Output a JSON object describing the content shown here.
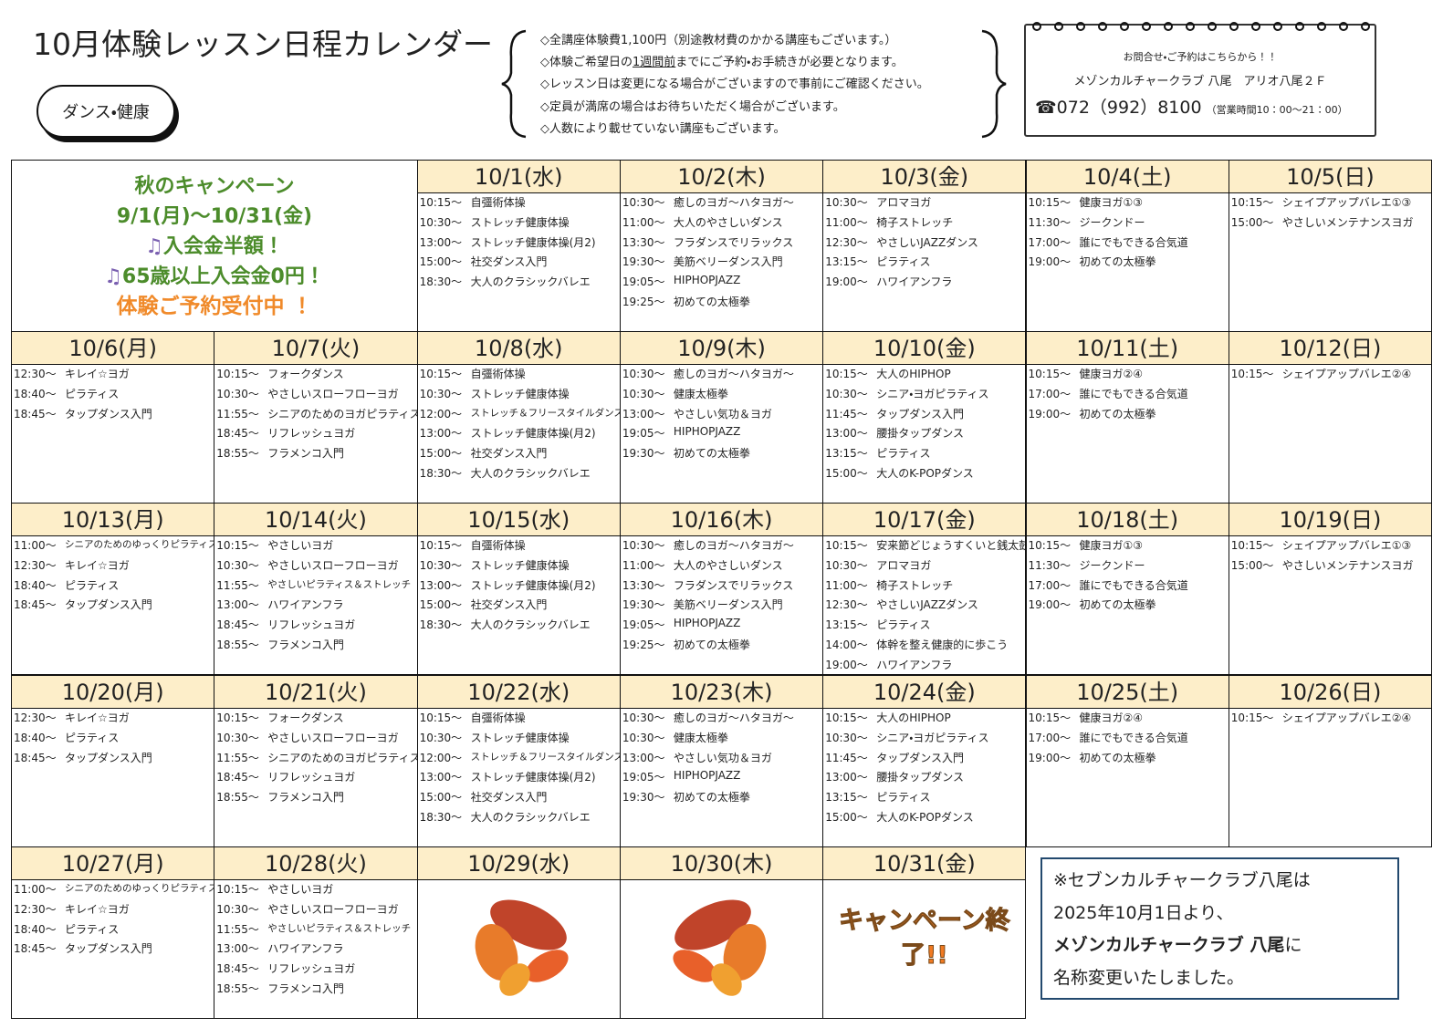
{
  "header": {
    "title": "10月体験レッスン日程カレンダー",
    "category": "ダンス・健康",
    "notes": [
      "◇全講座体験費1,100円（別途教材費のかかる講座もございます。）",
      {
        "before": "◇体験ご希望日の",
        "underline": "1週間前",
        "after": "までにご予約・お手続きが必要となります。"
      },
      "◇レッスン日は変更になる場合がございますので事前にご確認ください。",
      "◇定員が満席の場合はお待ちいただく場合がございます。",
      "◇人数により載せていない講座もございます。"
    ],
    "contact": {
      "lead": "お問合せ・ご予約はこちらから！！",
      "place": "メゾンカルチャークラブ 八尾　アリオ八尾２Ｆ",
      "phone": "☎072（992）8100",
      "hours": "（営業時間10：00～21：00）"
    }
  },
  "campaign": {
    "title": "秋のキャンペーン",
    "period": "9/1(月)～10/31(金)",
    "offer1": "入会金半額！",
    "offer2": "65歳以上入会金0円！",
    "cta": "体験ご予約受付中 ！"
  },
  "weeks": [
    [
      {
        "date": "10/1(水)",
        "lessons": [
          [
            "10:15～",
            "自彊術体操"
          ],
          [
            "10:30～",
            "ストレッチ健康体操"
          ],
          [
            "13:00～",
            "ストレッチ健康体操(月2)"
          ],
          [
            "15:00～",
            "社交ダンス入門"
          ],
          [
            "18:30～",
            "大人のクラシックバレエ"
          ]
        ]
      },
      {
        "date": "10/2(木)",
        "lessons": [
          [
            "10:30～",
            "癒しのヨガ～ハタヨガ～"
          ],
          [
            "11:00～",
            "大人のやさしいダンス"
          ],
          [
            "13:30～",
            "フラダンスでリラックス"
          ],
          [
            "19:30～",
            "美筋ベリーダンス入門"
          ],
          [
            "19:05～",
            "HIPHOPJAZZ"
          ],
          [
            "19:25～",
            "初めての太極拳"
          ]
        ]
      },
      {
        "date": "10/3(金)",
        "lessons": [
          [
            "10:30～",
            "アロマヨガ"
          ],
          [
            "11:00～",
            "椅子ストレッチ"
          ],
          [
            "12:30～",
            "やさしいJAZZダンス"
          ],
          [
            "13:15～",
            "ピラティス"
          ],
          [
            "19:00～",
            "ハワイアンフラ"
          ]
        ]
      },
      {
        "date": "10/4(土)",
        "lessons": [
          [
            "10:15～",
            "健康ヨガ①③"
          ],
          [
            "11:30～",
            "ジークンドー"
          ],
          [
            "17:00～",
            "誰にでもできる合気道"
          ],
          [
            "19:00～",
            "初めての太極拳"
          ]
        ]
      },
      {
        "date": "10/5(日)",
        "lessons": [
          [
            "10:15～",
            "シェイプアップバレエ①③"
          ],
          [
            "15:00～",
            "やさしいメンテナンスヨガ"
          ]
        ]
      }
    ],
    [
      {
        "date": "10/6(月)",
        "lessons": [
          [
            "12:30～",
            "キレイ☆ヨガ"
          ],
          [
            "18:40～",
            "ピラティス"
          ],
          [
            "18:45～",
            "タップダンス入門"
          ]
        ]
      },
      {
        "date": "10/7(火)",
        "lessons": [
          [
            "10:15～",
            "フォークダンス"
          ],
          [
            "10:30～",
            "やさしいスローフローヨガ"
          ],
          [
            "11:55～",
            "シニアのためのヨガピラティス"
          ],
          [
            "18:45～",
            "リフレッシュヨガ"
          ],
          [
            "18:55～",
            "フラメンコ入門"
          ]
        ]
      },
      {
        "date": "10/8(水)",
        "lessons": [
          [
            "10:15～",
            "自彊術体操"
          ],
          [
            "10:30～",
            "ストレッチ健康体操"
          ],
          [
            "12:00～",
            "ストレッチ＆フリースタイルダンス"
          ],
          [
            "13:00～",
            "ストレッチ健康体操(月2)"
          ],
          [
            "15:00～",
            "社交ダンス入門"
          ],
          [
            "18:30～",
            "大人のクラシックバレエ"
          ]
        ]
      },
      {
        "date": "10/9(木)",
        "lessons": [
          [
            "10:30～",
            "癒しのヨガ～ハタヨガ～"
          ],
          [
            "10:30～",
            "健康太極拳"
          ],
          [
            "13:00～",
            "やさしい気功＆ヨガ"
          ],
          [
            "19:05～",
            "HIPHOPJAZZ"
          ],
          [
            "19:30～",
            "初めての太極拳"
          ]
        ]
      },
      {
        "date": "10/10(金)",
        "lessons": [
          [
            "10:15～",
            "大人のHIPHOP"
          ],
          [
            "10:30～",
            "シニア・ヨガピラティス"
          ],
          [
            "11:45～",
            "タップダンス入門"
          ],
          [
            "13:00～",
            "腰掛タップダンス"
          ],
          [
            "13:15～",
            "ピラティス"
          ],
          [
            "15:00～",
            "大人のK-POPダンス"
          ]
        ]
      },
      {
        "date": "10/11(土)",
        "lessons": [
          [
            "10:15～",
            "健康ヨガ②④"
          ],
          [
            "17:00～",
            "誰にでもできる合気道"
          ],
          [
            "19:00～",
            "初めての太極拳"
          ]
        ]
      },
      {
        "date": "10/12(日)",
        "lessons": [
          [
            "10:15～",
            "シェイプアップバレエ②④"
          ]
        ]
      }
    ],
    [
      {
        "date": "10/13(月)",
        "lessons": [
          [
            "11:00～",
            "シニアのためのゆっくりピラティス"
          ],
          [
            "12:30～",
            "キレイ☆ヨガ"
          ],
          [
            "18:40～",
            "ピラティス"
          ],
          [
            "18:45～",
            "タップダンス入門"
          ]
        ]
      },
      {
        "date": "10/14(火)",
        "lessons": [
          [
            "10:15～",
            "やさしいヨガ"
          ],
          [
            "10:30～",
            "やさしいスローフローヨガ"
          ],
          [
            "11:55～",
            "やさしいピラティス＆ストレッチ"
          ],
          [
            "13:00～",
            "ハワイアンフラ"
          ],
          [
            "18:45～",
            "リフレッシュヨガ"
          ],
          [
            "18:55～",
            "フラメンコ入門"
          ]
        ]
      },
      {
        "date": "10/15(水)",
        "lessons": [
          [
            "10:15～",
            "自彊術体操"
          ],
          [
            "10:30～",
            "ストレッチ健康体操"
          ],
          [
            "13:00～",
            "ストレッチ健康体操(月2)"
          ],
          [
            "15:00～",
            "社交ダンス入門"
          ],
          [
            "18:30～",
            "大人のクラシックバレエ"
          ]
        ]
      },
      {
        "date": "10/16(木)",
        "lessons": [
          [
            "10:30～",
            "癒しのヨガ～ハタヨガ～"
          ],
          [
            "11:00～",
            "大人のやさしいダンス"
          ],
          [
            "13:30～",
            "フラダンスでリラックス"
          ],
          [
            "19:30～",
            "美筋ベリーダンス入門"
          ],
          [
            "19:05～",
            "HIPHOPJAZZ"
          ],
          [
            "19:25～",
            "初めての太極拳"
          ]
        ]
      },
      {
        "date": "10/17(金)",
        "lessons": [
          [
            "10:15～",
            "安来節どじょうすくいと銭太鼓"
          ],
          [
            "10:30～",
            "アロマヨガ"
          ],
          [
            "11:00～",
            "椅子ストレッチ"
          ],
          [
            "12:30～",
            "やさしいJAZZダンス"
          ],
          [
            "13:15～",
            "ピラティス"
          ],
          [
            "14:00～",
            "体幹を整え健康的に歩こう"
          ],
          [
            "19:00～",
            "ハワイアンフラ"
          ]
        ]
      },
      {
        "date": "10/18(土)",
        "lessons": [
          [
            "10:15～",
            "健康ヨガ①③"
          ],
          [
            "11:30～",
            "ジークンドー"
          ],
          [
            "17:00～",
            "誰にでもできる合気道"
          ],
          [
            "19:00～",
            "初めての太極拳"
          ]
        ]
      },
      {
        "date": "10/19(日)",
        "lessons": [
          [
            "10:15～",
            "シェイプアップバレエ①③"
          ],
          [
            "15:00～",
            "やさしいメンテナンスヨガ"
          ]
        ]
      }
    ],
    [
      {
        "date": "10/20(月)",
        "lessons": [
          [
            "12:30～",
            "キレイ☆ヨガ"
          ],
          [
            "18:40～",
            "ピラティス"
          ],
          [
            "18:45～",
            "タップダンス入門"
          ]
        ]
      },
      {
        "date": "10/21(火)",
        "lessons": [
          [
            "10:15～",
            "フォークダンス"
          ],
          [
            "10:30～",
            "やさしいスローフローヨガ"
          ],
          [
            "11:55～",
            "シニアのためのヨガピラティス"
          ],
          [
            "18:45～",
            "リフレッシュヨガ"
          ],
          [
            "18:55～",
            "フラメンコ入門"
          ]
        ]
      },
      {
        "date": "10/22(水)",
        "lessons": [
          [
            "10:15～",
            "自彊術体操"
          ],
          [
            "10:30～",
            "ストレッチ健康体操"
          ],
          [
            "12:00～",
            "ストレッチ＆フリースタイルダンス"
          ],
          [
            "13:00～",
            "ストレッチ健康体操(月2)"
          ],
          [
            "15:00～",
            "社交ダンス入門"
          ],
          [
            "18:30～",
            "大人のクラシックバレエ"
          ]
        ]
      },
      {
        "date": "10/23(木)",
        "lessons": [
          [
            "10:30～",
            "癒しのヨガ～ハタヨガ～"
          ],
          [
            "10:30～",
            "健康太極拳"
          ],
          [
            "13:00～",
            "やさしい気功＆ヨガ"
          ],
          [
            "19:05～",
            "HIPHOPJAZZ"
          ],
          [
            "19:30～",
            "初めての太極拳"
          ]
        ]
      },
      {
        "date": "10/24(金)",
        "lessons": [
          [
            "10:15～",
            "大人のHIPHOP"
          ],
          [
            "10:30～",
            "シニア・ヨガピラティス"
          ],
          [
            "11:45～",
            "タップダンス入門"
          ],
          [
            "13:00～",
            "腰掛タップダンス"
          ],
          [
            "13:15～",
            "ピラティス"
          ],
          [
            "15:00～",
            "大人のK-POPダンス"
          ]
        ]
      },
      {
        "date": "10/25(土)",
        "lessons": [
          [
            "10:15～",
            "健康ヨガ②④"
          ],
          [
            "17:00～",
            "誰にでもできる合気道"
          ],
          [
            "19:00～",
            "初めての太極拳"
          ]
        ]
      },
      {
        "date": "10/26(日)",
        "lessons": [
          [
            "10:15～",
            "シェイプアップバレエ②④"
          ]
        ]
      }
    ],
    [
      {
        "date": "10/27(月)",
        "lessons": [
          [
            "11:00～",
            "シニアのためのゆっくりピラティス"
          ],
          [
            "12:30～",
            "キレイ☆ヨガ"
          ],
          [
            "18:40～",
            "ピラティス"
          ],
          [
            "18:45～",
            "タップダンス入門"
          ]
        ]
      },
      {
        "date": "10/28(火)",
        "lessons": [
          [
            "10:15～",
            "やさしいヨガ"
          ],
          [
            "10:30～",
            "やさしいスローフローヨガ"
          ],
          [
            "11:55～",
            "やさしいピラティス＆ストレッチ"
          ],
          [
            "13:00～",
            "ハワイアンフラ"
          ],
          [
            "18:45～",
            "リフレッシュヨガ"
          ],
          [
            "18:55～",
            "フラメンコ入門"
          ]
        ]
      },
      {
        "date": "10/29(水)",
        "lessons": []
      },
      {
        "date": "10/30(木)",
        "lessons": []
      },
      {
        "date": "10/31(金)",
        "lessons": []
      }
    ]
  ],
  "campaign_end": "キャンペーン終了!!",
  "notice": {
    "line1": "※セブンカルチャークラブ八尾は",
    "line2": "2025年10月1日より、",
    "line3_bold": "メゾンカルチャークラブ 八尾",
    "line3_rest": "に",
    "line4": "名称変更いたしました。"
  }
}
